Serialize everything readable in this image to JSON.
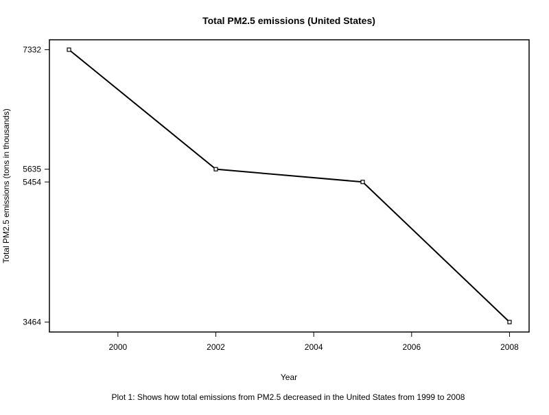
{
  "chart_data": {
    "type": "line",
    "title": "Total PM2.5 emissions (United States)",
    "xlabel": "Year",
    "ylabel": "Total PM2.5 emissions (tons in thousands)",
    "caption": "Plot 1: Shows how total emissions from PM2.5 decreased in the United States from 1999 to 2008",
    "x": [
      1999,
      2002,
      2005,
      2008
    ],
    "series": [
      {
        "values": [
          7332,
          5635,
          5454,
          3464
        ]
      }
    ],
    "xticks": [
      2000,
      2002,
      2004,
      2006,
      2008
    ],
    "yticks": [
      7332,
      5635,
      5454,
      3464
    ],
    "xlim": [
      1998.6,
      2008.4
    ],
    "ylim": [
      3323,
      7473
    ],
    "grid": false,
    "line_color": "#000000",
    "marker": "open-square"
  }
}
